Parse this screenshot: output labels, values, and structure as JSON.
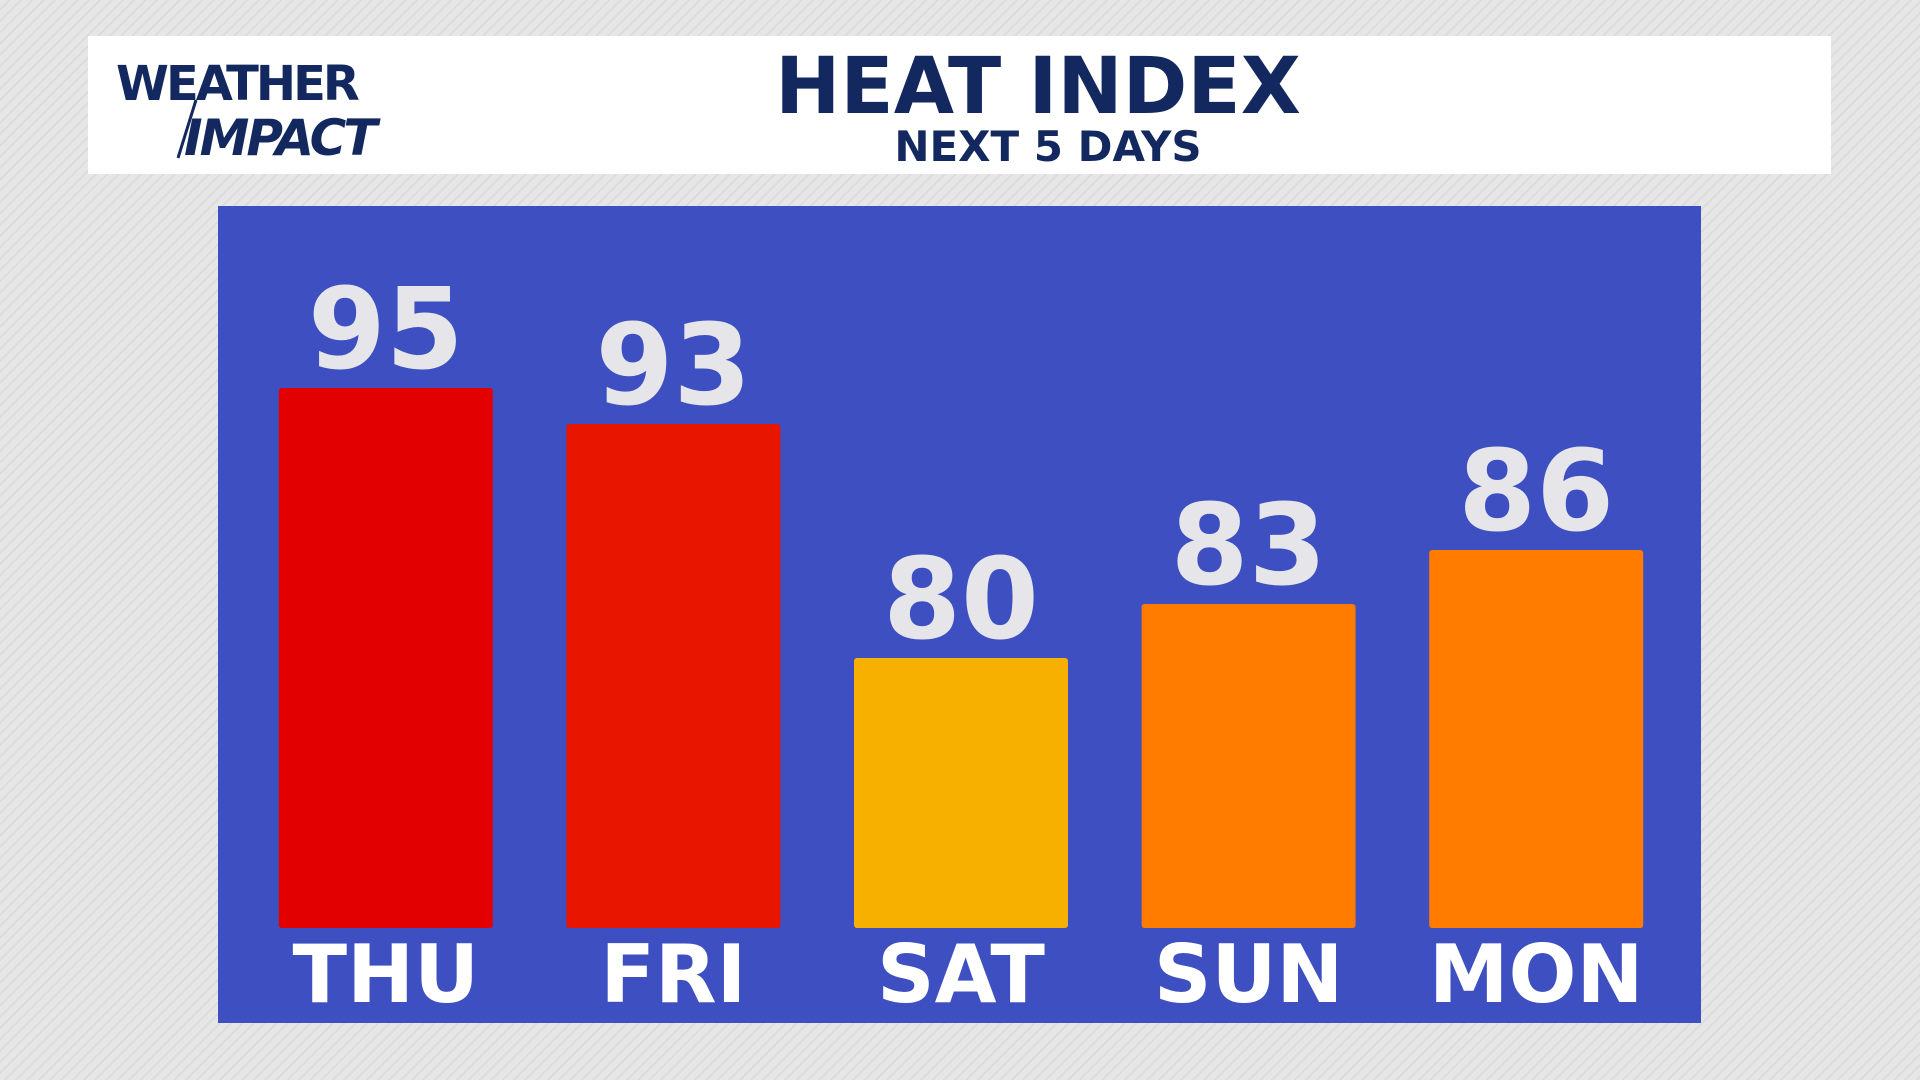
{
  "logo": {
    "line1": "WEATHER",
    "line2": "IMPACT"
  },
  "chart_data": {
    "type": "bar",
    "title": "HEAT INDEX",
    "subtitle": "NEXT 5 DAYS",
    "categories": [
      "THU",
      "FRI",
      "SAT",
      "SUN",
      "MON"
    ],
    "values": [
      95,
      93,
      80,
      83,
      86
    ],
    "colors": [
      "#e30000",
      "#e81500",
      "#f7b000",
      "#ff7c00",
      "#ff7c00"
    ],
    "ylim": [
      65,
      100
    ]
  }
}
